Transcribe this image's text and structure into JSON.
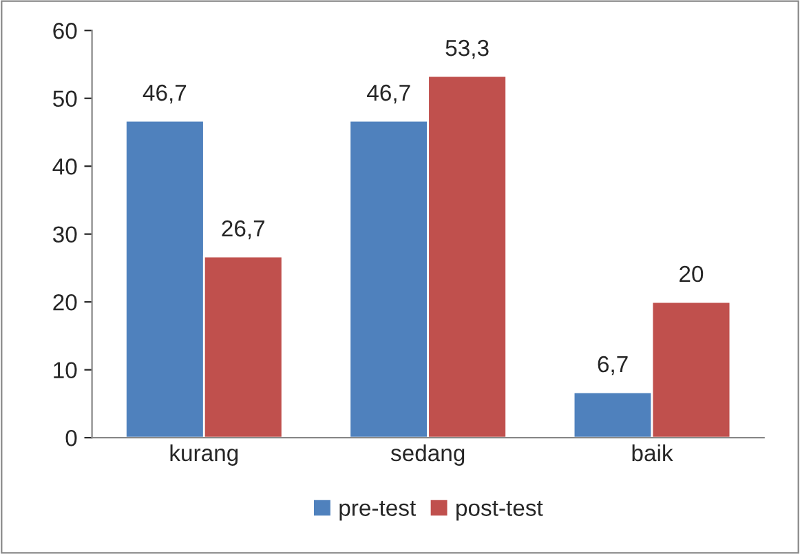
{
  "chart_data": {
    "type": "bar",
    "categories": [
      "kurang",
      "sedang",
      "baik"
    ],
    "series": [
      {
        "name": "pre-test",
        "color": "#4f81bd",
        "values": [
          46.7,
          46.7,
          6.7
        ],
        "value_labels": [
          "46,7",
          "46,7",
          "6,7"
        ]
      },
      {
        "name": "post-test",
        "color": "#c0504d",
        "values": [
          26.7,
          53.3,
          20
        ],
        "value_labels": [
          "26,7",
          "53,3",
          "20"
        ]
      }
    ],
    "ylim": [
      0,
      60
    ],
    "yticks": [
      0,
      10,
      20,
      30,
      40,
      50,
      60
    ],
    "grid": false,
    "legend": "bottom"
  }
}
